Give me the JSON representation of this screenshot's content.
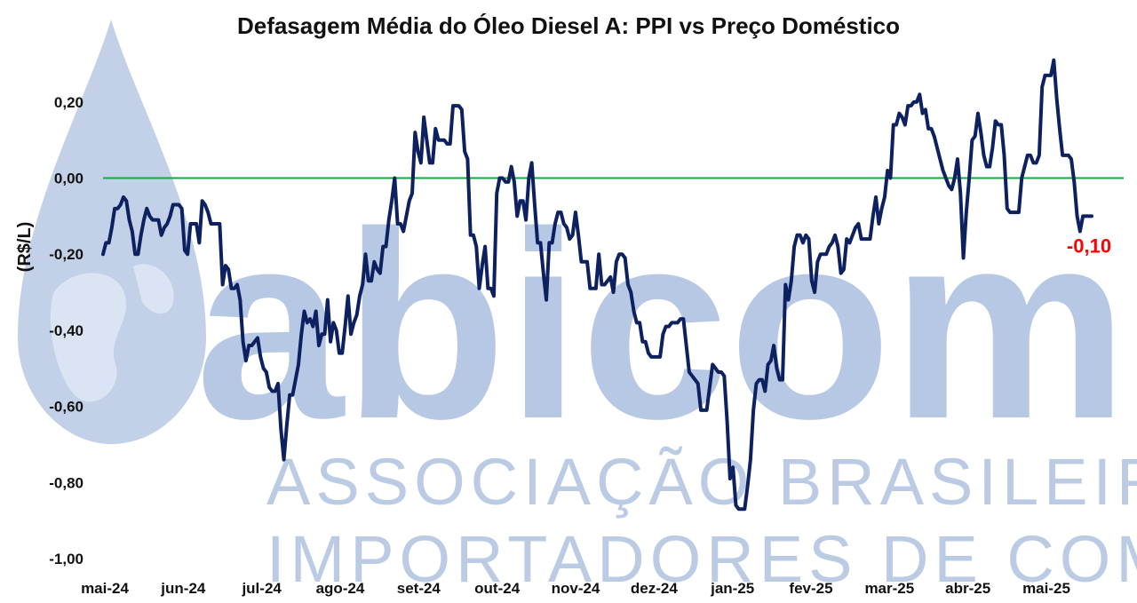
{
  "watermark": {
    "brand": "abicom",
    "line1": "ASSOCIAÇÃO BRASILEIRA DOS",
    "line2": "IMPORTADORES DE COMBUSTÍVEIS",
    "color": "#b7c8e4",
    "icon": "oil-drop-globe-icon"
  },
  "chart_data": {
    "type": "line",
    "title": "Defasagem Média do Óleo Diesel A: PPI vs Preço Doméstico",
    "ylabel": "(R$/L)",
    "xlabel": "",
    "ylim": [
      -1.0,
      0.3
    ],
    "grid": false,
    "legend": "none",
    "y_ticks": [
      0.2,
      0.0,
      -0.2,
      -0.4,
      -0.6,
      -0.8,
      -1.0
    ],
    "y_tick_labels": [
      "0,20",
      "0,00",
      "-0,20",
      "-0,40",
      "-0,60",
      "-0,80",
      "-1,00"
    ],
    "x_ticks": [
      "mai-24",
      "jun-24",
      "jul-24",
      "ago-24",
      "set-24",
      "out-24",
      "nov-24",
      "dez-24",
      "jan-25",
      "fev-25",
      "mar-25",
      "abr-25",
      "mai-25"
    ],
    "zero_line_color": "#1aa34a",
    "series": [
      {
        "color": "#0d2160",
        "values": [
          -0.2,
          -0.17,
          -0.17,
          -0.13,
          -0.08,
          -0.08,
          -0.07,
          -0.05,
          -0.06,
          -0.11,
          -0.14,
          -0.2,
          -0.2,
          -0.15,
          -0.11,
          -0.08,
          -0.1,
          -0.11,
          -0.11,
          -0.11,
          -0.15,
          -0.13,
          -0.12,
          -0.1,
          -0.07,
          -0.07,
          -0.07,
          -0.08,
          -0.19,
          -0.2,
          -0.12,
          -0.12,
          -0.12,
          -0.17,
          -0.06,
          -0.07,
          -0.09,
          -0.12,
          -0.12,
          -0.12,
          -0.12,
          -0.28,
          -0.23,
          -0.24,
          -0.29,
          -0.29,
          -0.28,
          -0.32,
          -0.43,
          -0.48,
          -0.44,
          -0.44,
          -0.43,
          -0.42,
          -0.47,
          -0.5,
          -0.51,
          -0.55,
          -0.56,
          -0.56,
          -0.54,
          -0.66,
          -0.74,
          -0.65,
          -0.57,
          -0.57,
          -0.53,
          -0.49,
          -0.41,
          -0.35,
          -0.38,
          -0.37,
          -0.39,
          -0.35,
          -0.44,
          -0.41,
          -0.41,
          -0.32,
          -0.43,
          -0.38,
          -0.4,
          -0.46,
          -0.46,
          -0.39,
          -0.31,
          -0.41,
          -0.38,
          -0.36,
          -0.31,
          -0.28,
          -0.2,
          -0.27,
          -0.27,
          -0.22,
          -0.24,
          -0.25,
          -0.18,
          -0.18,
          -0.11,
          -0.06,
          0.0,
          -0.12,
          -0.12,
          -0.14,
          -0.1,
          -0.06,
          -0.04,
          0.12,
          0.07,
          0.04,
          0.16,
          0.1,
          0.04,
          0.04,
          0.13,
          0.1,
          0.1,
          0.1,
          0.09,
          0.09,
          0.19,
          0.19,
          0.19,
          0.18,
          0.07,
          0.05,
          -0.15,
          -0.15,
          -0.18,
          -0.29,
          -0.23,
          -0.18,
          -0.29,
          -0.29,
          -0.31,
          -0.04,
          0.0,
          0.0,
          -0.01,
          -0.01,
          0.03,
          -0.01,
          -0.1,
          -0.06,
          -0.06,
          -0.11,
          0.0,
          0.04,
          -0.07,
          -0.17,
          -0.17,
          -0.25,
          -0.32,
          -0.17,
          -0.17,
          -0.12,
          -0.09,
          -0.09,
          -0.12,
          -0.13,
          -0.16,
          -0.15,
          -0.09,
          -0.15,
          -0.22,
          -0.22,
          -0.22,
          -0.29,
          -0.29,
          -0.29,
          -0.2,
          -0.28,
          -0.28,
          -0.27,
          -0.26,
          -0.3,
          -0.22,
          -0.2,
          -0.2,
          -0.21,
          -0.28,
          -0.3,
          -0.35,
          -0.38,
          -0.38,
          -0.43,
          -0.43,
          -0.46,
          -0.47,
          -0.47,
          -0.47,
          -0.47,
          -0.41,
          -0.39,
          -0.39,
          -0.38,
          -0.38,
          -0.38,
          -0.37,
          -0.37,
          -0.44,
          -0.51,
          -0.52,
          -0.53,
          -0.54,
          -0.61,
          -0.61,
          -0.61,
          -0.55,
          -0.49,
          -0.5,
          -0.51,
          -0.51,
          -0.52,
          -0.64,
          -0.79,
          -0.76,
          -0.86,
          -0.87,
          -0.87,
          -0.87,
          -0.81,
          -0.74,
          -0.61,
          -0.54,
          -0.53,
          -0.53,
          -0.56,
          -0.49,
          -0.48,
          -0.44,
          -0.5,
          -0.53,
          -0.53,
          -0.28,
          -0.32,
          -0.27,
          -0.18,
          -0.15,
          -0.15,
          -0.17,
          -0.15,
          -0.16,
          -0.27,
          -0.3,
          -0.22,
          -0.2,
          -0.2,
          -0.2,
          -0.18,
          -0.17,
          -0.15,
          -0.18,
          -0.25,
          -0.24,
          -0.16,
          -0.17,
          -0.15,
          -0.13,
          -0.12,
          -0.16,
          -0.16,
          -0.16,
          -0.16,
          -0.1,
          -0.05,
          -0.12,
          -0.08,
          -0.05,
          0.02,
          0.0,
          0.14,
          0.14,
          0.17,
          0.16,
          0.14,
          0.19,
          0.19,
          0.2,
          0.2,
          0.22,
          0.17,
          0.18,
          0.13,
          0.13,
          0.11,
          0.08,
          0.05,
          0.02,
          0.0,
          -0.02,
          -0.03,
          0.0,
          0.05,
          -0.04,
          -0.21,
          -0.09,
          0.0,
          0.1,
          0.11,
          0.17,
          0.12,
          0.06,
          0.03,
          0.03,
          0.08,
          0.15,
          0.14,
          0.14,
          0.06,
          -0.08,
          -0.09,
          -0.09,
          -0.09,
          -0.09,
          0.0,
          0.03,
          0.06,
          0.06,
          0.04,
          0.04,
          0.06,
          0.24,
          0.27,
          0.27,
          0.27,
          0.31,
          0.21,
          0.13,
          0.06,
          0.06,
          0.06,
          0.05,
          -0.01,
          -0.1,
          -0.14,
          -0.1,
          -0.1,
          -0.1,
          -0.1
        ]
      }
    ],
    "last_value_label": "-0,10",
    "last_value_color": "#ff0000"
  }
}
